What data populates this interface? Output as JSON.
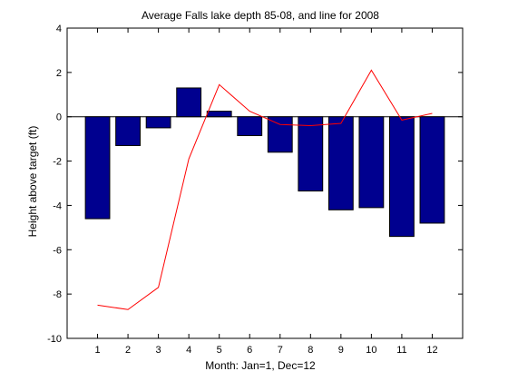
{
  "chart_data": {
    "type": "bar",
    "title": "Average Falls lake depth 85-08, and line for 2008",
    "xlabel": "Month: Jan=1, Dec=12",
    "ylabel": "Height above target (ft)",
    "categories": [
      "1",
      "2",
      "3",
      "4",
      "5",
      "6",
      "7",
      "8",
      "9",
      "10",
      "11",
      "12"
    ],
    "x": [
      1,
      2,
      3,
      4,
      5,
      6,
      7,
      8,
      9,
      10,
      11,
      12
    ],
    "xlim": [
      0,
      13
    ],
    "ylim": [
      -10,
      4
    ],
    "yticks": [
      -10,
      -8,
      -6,
      -4,
      -2,
      0,
      2,
      4
    ],
    "grid": false,
    "series": [
      {
        "type": "bar",
        "values": [
          -4.6,
          -1.3,
          -0.5,
          1.3,
          0.25,
          -0.85,
          -1.6,
          -3.35,
          -4.2,
          -4.1,
          -5.4,
          -4.8
        ],
        "color": "#00008f"
      },
      {
        "type": "line",
        "values": [
          -8.5,
          -8.7,
          -7.7,
          -1.9,
          1.45,
          0.25,
          -0.35,
          -0.4,
          -0.3,
          2.1,
          -0.15,
          0.15
        ],
        "color": "#ff0000"
      }
    ]
  }
}
